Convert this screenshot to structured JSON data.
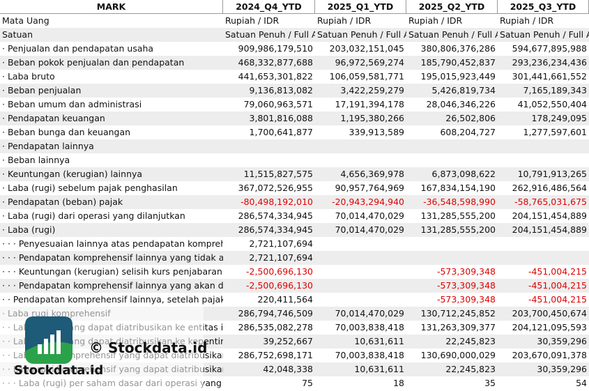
{
  "table": {
    "header": [
      "MARK",
      "2024_Q4_YTD",
      "2025_Q1_YTD",
      "2025_Q2_YTD",
      "2025_Q3_YTD"
    ],
    "rows": [
      [
        "Mata Uang",
        "Rupiah / IDR",
        "Rupiah / IDR",
        "Rupiah / IDR",
        "Rupiah / IDR"
      ],
      [
        "Satuan",
        "Satuan Penuh / Full A",
        "Satuan Penuh / Full A",
        "Satuan Penuh / Full A",
        "Satuan Penuh / Full A"
      ],
      [
        "· Penjualan dan pendapatan usaha",
        "909,986,179,510",
        "203,032,151,045",
        "380,806,376,286",
        "594,677,895,988"
      ],
      [
        "· Beban pokok penjualan dan pendapatan",
        "468,332,877,688",
        "96,972,569,274",
        "185,790,452,837",
        "293,236,234,436"
      ],
      [
        "· Laba bruto",
        "441,653,301,822",
        "106,059,581,771",
        "195,015,923,449",
        "301,441,661,552"
      ],
      [
        "· Beban penjualan",
        "9,136,813,082",
        "3,422,259,279",
        "5,426,819,734",
        "7,165,189,343"
      ],
      [
        "· Beban umum dan administrasi",
        "79,060,963,571",
        "17,191,394,178",
        "28,046,346,226",
        "41,052,550,404"
      ],
      [
        "· Pendapatan keuangan",
        "3,801,816,088",
        "1,195,380,266",
        "26,502,806",
        "178,249,095"
      ],
      [
        "· Beban bunga dan keuangan",
        "1,700,641,877",
        "339,913,589",
        "608,204,727",
        "1,277,597,601"
      ],
      [
        "· Pendapatan lainnya",
        "",
        "",
        "",
        ""
      ],
      [
        "· Beban lainnya",
        "",
        "",
        "",
        ""
      ],
      [
        "· Keuntungan (kerugian) lainnya",
        "11,515,827,575",
        "4,656,369,978",
        "6,873,098,622",
        "10,791,913,265"
      ],
      [
        "· Laba (rugi) sebelum pajak penghasilan",
        "367,072,526,955",
        "90,957,764,969",
        "167,834,154,190",
        "262,916,486,564"
      ],
      [
        "· Pendapatan (beban) pajak",
        "-80,498,192,010",
        "-20,943,294,940",
        "-36,548,598,990",
        "-58,765,031,675"
      ],
      [
        "· Laba (rugi) dari operasi yang dilanjutkan",
        "286,574,334,945",
        "70,014,470,029",
        "131,285,555,200",
        "204,151,454,889"
      ],
      [
        "· Laba (rugi)",
        "286,574,334,945",
        "70,014,470,029",
        "131,285,555,200",
        "204,151,454,889"
      ],
      [
        "· · · Penyesuaian lainnya atas pendapatan komprehe",
        "2,721,107,694",
        "",
        "",
        ""
      ],
      [
        "· · · Pendapatan komprehensif lainnya yang tidak ak",
        "2,721,107,694",
        "",
        "",
        ""
      ],
      [
        "· · · Keuntungan (kerugian) selisih kurs penjabaran, :",
        "-2,500,696,130",
        "",
        "-573,309,348",
        "-451,004,215"
      ],
      [
        "· · · Pendapatan komprehensif lainnya yang akan dir",
        "-2,500,696,130",
        "",
        "-573,309,348",
        "-451,004,215"
      ],
      [
        "· · Pendapatan komprehensif lainnya, setelah pajak",
        "220,411,564",
        "",
        "-573,309,348",
        "-451,004,215"
      ],
      [
        "· Laba rugi komprehensif",
        "286,794,746,509",
        "70,014,470,029",
        "130,712,245,852",
        "203,700,450,674"
      ],
      [
        "· · Laba (rugi) yang dapat diatribusikan ke entitas ind",
        "286,535,082,278",
        "70,003,838,418",
        "131,263,309,377",
        "204,121,095,593"
      ],
      [
        "· · Laba (rugi) yang dapat diatribusikan ke kepenting",
        "39,252,667",
        "10,631,611",
        "22,245,823",
        "30,359,296"
      ],
      [
        "· · Laba rugi komprehensif yang dapat diatribusikan",
        "286,752,698,171",
        "70,003,838,418",
        "130,690,000,029",
        "203,670,091,378"
      ],
      [
        "· · Laba rugi komprehensif yang dapat diatribusikan",
        "42,048,338",
        "10,631,611",
        "22,245,823",
        "30,359,296"
      ],
      [
        "· · · Laba (rugi) per saham dasar dari operasi yang dil",
        "75",
        "18",
        "35",
        "54"
      ]
    ]
  },
  "watermark": {
    "copyright": "© Stockdata.id",
    "brand": "Stockdata.id"
  }
}
